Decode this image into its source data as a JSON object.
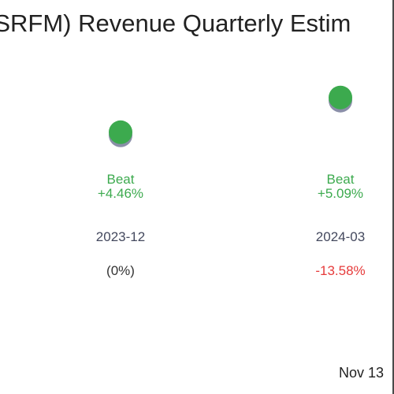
{
  "chart_data": {
    "type": "scatter",
    "title": "(SRFM) Revenue Quarterly Estim",
    "categories": [
      "2023-12",
      "2024-03"
    ],
    "series": [
      {
        "surprise_pct": [
          4.46,
          5.09
        ],
        "result_labels": [
          "Beat",
          "Beat"
        ],
        "surprise_labels": [
          "+4.46%",
          "+5.09%"
        ],
        "change_labels": [
          "(0%)",
          "-13.58%"
        ]
      }
    ],
    "ylim": [
      0,
      6
    ],
    "grid": false,
    "legend": "none"
  },
  "footer": {
    "date": "Nov 13"
  },
  "colors": {
    "beat": "#3caa4e",
    "marker_shadow": "#8a8fa8",
    "negative": "#e63b3b",
    "neutral": "#333333",
    "category": "#44495e"
  }
}
